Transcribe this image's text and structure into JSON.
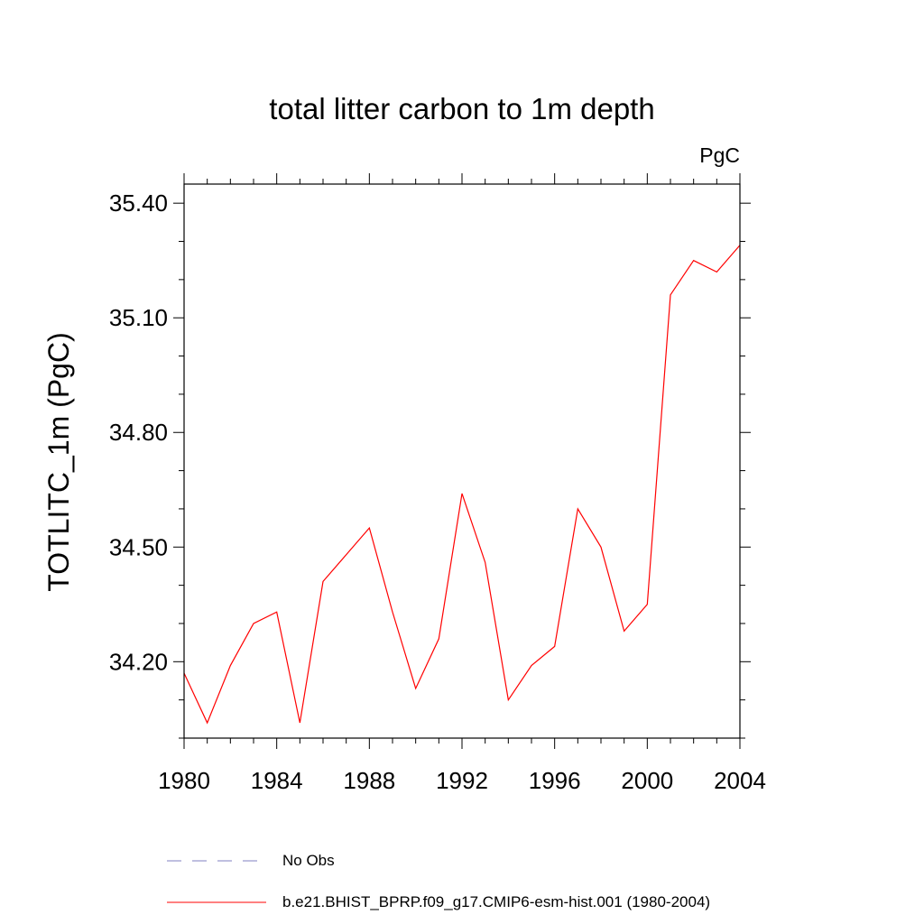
{
  "chart_data": {
    "type": "line",
    "title": "total litter carbon to 1m depth",
    "units_label": "PgC",
    "ylabel": "TOTLITC_1m  (PgC)",
    "xlabel": "",
    "xlim": [
      1980,
      2004
    ],
    "ylim": [
      34.0,
      35.45
    ],
    "x_ticks": [
      1980,
      1984,
      1988,
      1992,
      1996,
      2000,
      2004
    ],
    "x_tick_labels": [
      "1980",
      "1984",
      "1988",
      "1992",
      "1996",
      "2000",
      "2004"
    ],
    "y_ticks": [
      34.2,
      34.5,
      34.8,
      35.1,
      35.4
    ],
    "y_tick_labels": [
      "34.20",
      "34.50",
      "34.80",
      "35.10",
      "35.40"
    ],
    "y_minor_step": 0.1,
    "x_minor_step": 1,
    "grid": false,
    "colors": {
      "series": "#ff0000",
      "no_obs": "#8080c0"
    },
    "series": [
      {
        "name": "b.e21.BHIST_BPRP.f09_g17.CMIP6-esm-hist.001 (1980-2004)",
        "x": [
          1980,
          1981,
          1982,
          1983,
          1984,
          1985,
          1986,
          1987,
          1988,
          1989,
          1990,
          1991,
          1992,
          1993,
          1994,
          1995,
          1996,
          1997,
          1998,
          1999,
          2000,
          2001,
          2002,
          2003,
          2004
        ],
        "values": [
          34.17,
          34.04,
          34.19,
          34.3,
          34.33,
          34.04,
          34.41,
          34.48,
          34.55,
          34.33,
          34.13,
          34.26,
          34.64,
          34.46,
          34.1,
          34.19,
          34.24,
          34.6,
          34.5,
          34.28,
          34.35,
          35.16,
          35.25,
          35.22,
          35.29
        ]
      }
    ],
    "legend": {
      "placement": "bottom",
      "entries": [
        {
          "label": "No Obs",
          "style": "dashed",
          "color": "#8080c0"
        },
        {
          "label": "b.e21.BHIST_BPRP.f09_g17.CMIP6-esm-hist.001 (1980-2004)",
          "style": "solid",
          "color": "#ff0000"
        }
      ]
    }
  }
}
